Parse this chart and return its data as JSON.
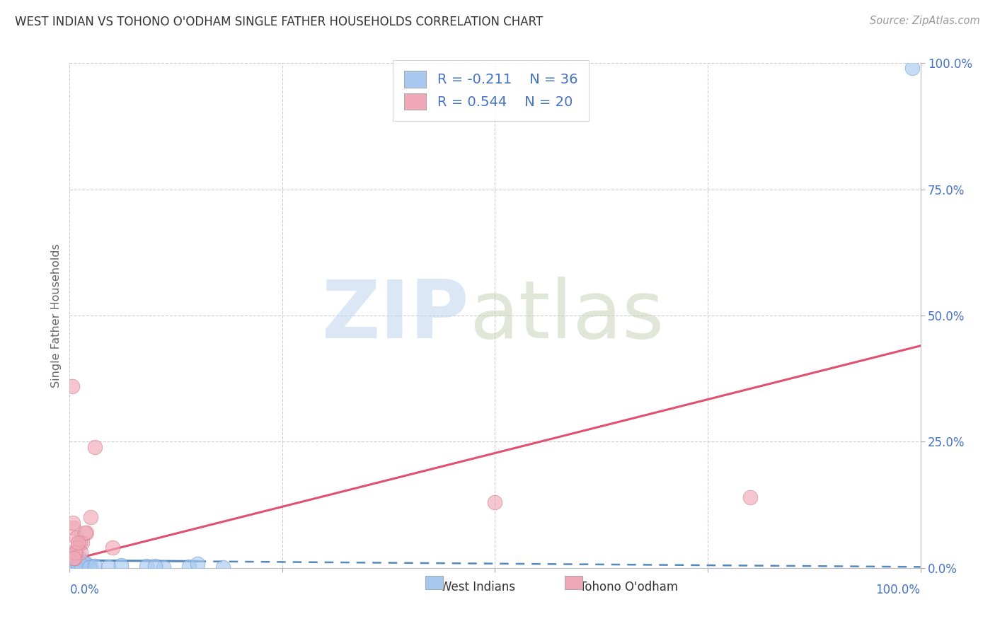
{
  "title": "WEST INDIAN VS TOHONO O'ODHAM SINGLE FATHER HOUSEHOLDS CORRELATION CHART",
  "source": "Source: ZipAtlas.com",
  "ylabel": "Single Father Households",
  "xlim": [
    0,
    100
  ],
  "ylim": [
    0,
    100
  ],
  "xticks": [
    0,
    25,
    50,
    75,
    100
  ],
  "yticks": [
    0,
    25,
    50,
    75,
    100
  ],
  "x_left_label": "0.0%",
  "x_right_label": "100.0%",
  "ytick_labels": [
    "0.0%",
    "25.0%",
    "50.0%",
    "75.0%",
    "100.0%"
  ],
  "blue_fill": "#A8C8F0",
  "blue_edge": "#6699CC",
  "pink_fill": "#F0A8B8",
  "pink_edge": "#CC7788",
  "blue_line_color": "#5588BB",
  "pink_line_color": "#E05070",
  "legend_R_blue": "-0.211",
  "legend_N_blue": "36",
  "legend_R_pink": "0.544",
  "legend_N_pink": "20",
  "blue_scatter_x": [
    0.4,
    0.6,
    0.9,
    0.3,
    0.5,
    0.8,
    1.2,
    1.6,
    0.35,
    0.65,
    1.0,
    1.5,
    0.75,
    1.1,
    2.0,
    2.5,
    0.2,
    0.55,
    1.3,
    1.7,
    1.9,
    0.45,
    0.7,
    0.85,
    1.4,
    2.3,
    3.0,
    4.5,
    6.0,
    9.0,
    11.0,
    14.0,
    18.0,
    10.0,
    15.0,
    99.0
  ],
  "blue_scatter_y": [
    1.2,
    0.4,
    1.8,
    2.5,
    0.8,
    0.6,
    2.0,
    1.0,
    0.25,
    1.5,
    0.6,
    1.2,
    1.8,
    0.4,
    0.8,
    0.25,
    0.7,
    1.2,
    0.4,
    0.15,
    0.8,
    0.25,
    0.4,
    1.0,
    0.6,
    0.15,
    0.4,
    0.25,
    0.6,
    0.4,
    0.15,
    0.25,
    0.15,
    0.4,
    0.8,
    99.0
  ],
  "pink_scatter_x": [
    0.3,
    0.5,
    1.5,
    2.5,
    0.8,
    2.0,
    1.2,
    0.7,
    3.0,
    0.6,
    50.0,
    80.0,
    5.0,
    1.8,
    0.9,
    1.3,
    0.4,
    0.6,
    1.0,
    0.45
  ],
  "pink_scatter_y": [
    36.0,
    8.0,
    5.0,
    10.0,
    6.0,
    7.0,
    5.0,
    3.0,
    24.0,
    2.0,
    13.0,
    14.0,
    4.0,
    7.0,
    4.0,
    3.0,
    9.0,
    3.0,
    5.0,
    2.0
  ],
  "blue_line_x": [
    0,
    100
  ],
  "blue_line_y": [
    1.5,
    0.2
  ],
  "pink_line_x": [
    0,
    100
  ],
  "pink_line_y": [
    1.5,
    44.0
  ],
  "background_color": "#FFFFFF",
  "grid_color": "#CCCCCC",
  "title_color": "#333333",
  "axis_label_color": "#666666",
  "tick_color": "#4472C4",
  "source_color": "#999999",
  "legend_text_color": "#4472C4",
  "watermark_ZIP_color": "#C0D4EE",
  "watermark_atlas_color": "#C8D4B8"
}
